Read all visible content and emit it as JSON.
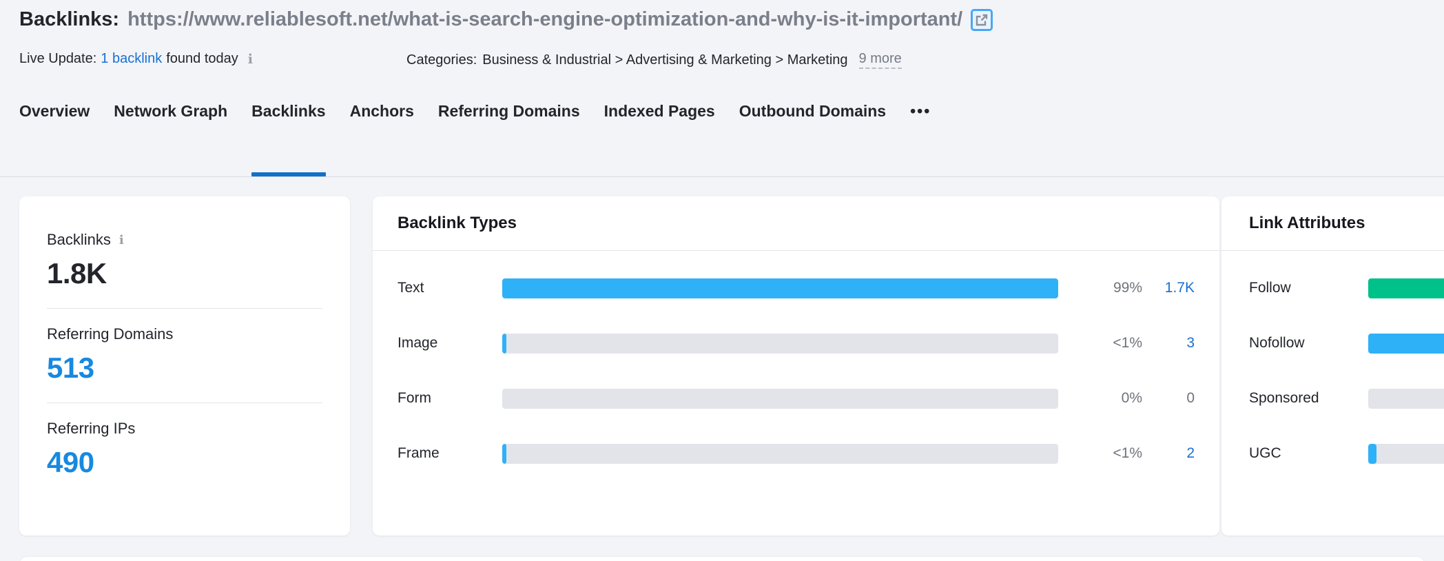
{
  "palette": {
    "blue": "#2fb1f7",
    "green": "#00c189",
    "track": "#e3e4e9",
    "accent": "#1270c9"
  },
  "header": {
    "title_label": "Backlinks:",
    "title_url": "https://www.reliablesoft.net/what-is-search-engine-optimization-and-why-is-it-important/",
    "live_update_label": "Live Update:",
    "live_update_link": "1 backlink",
    "live_update_suffix": "found today",
    "info_icon": "i",
    "categories_label": "Categories:",
    "categories_path": "Business & Industrial > Advertising & Marketing > Marketing",
    "categories_more": "9 more"
  },
  "tabs": {
    "items": [
      {
        "label": "Overview"
      },
      {
        "label": "Network Graph"
      },
      {
        "label": "Backlinks"
      },
      {
        "label": "Anchors"
      },
      {
        "label": "Referring Domains"
      },
      {
        "label": "Indexed Pages"
      },
      {
        "label": "Outbound Domains"
      },
      {
        "label": "•••"
      }
    ],
    "active": "Backlinks"
  },
  "summary": {
    "metrics": [
      {
        "label": "Backlinks",
        "value": "1.8K",
        "has_info": true
      },
      {
        "label": "Referring Domains",
        "value": "513"
      },
      {
        "label": "Referring IPs",
        "value": "490"
      }
    ]
  },
  "backlink_types": {
    "title": "Backlink Types",
    "rows": [
      {
        "label": "Text",
        "percent": "99%",
        "value": "1.7K",
        "fill_pct": 100,
        "color": "blue"
      },
      {
        "label": "Image",
        "percent": "<1%",
        "value": "3",
        "fill_pct": 0.8,
        "color": "blue"
      },
      {
        "label": "Form",
        "percent": "0%",
        "value": "0",
        "fill_pct": 0,
        "color": "blue"
      },
      {
        "label": "Frame",
        "percent": "<1%",
        "value": "2",
        "fill_pct": 0.8,
        "color": "blue"
      }
    ]
  },
  "link_attributes": {
    "title": "Link Attributes",
    "rows": [
      {
        "label": "Follow",
        "fill_pct": 100,
        "color": "green"
      },
      {
        "label": "Nofollow",
        "fill_pct": 100,
        "color": "blue"
      },
      {
        "label": "Sponsored",
        "fill_pct": 0,
        "color": "blue"
      },
      {
        "label": "UGC",
        "fill_pct": 4,
        "color": "blue"
      }
    ]
  }
}
